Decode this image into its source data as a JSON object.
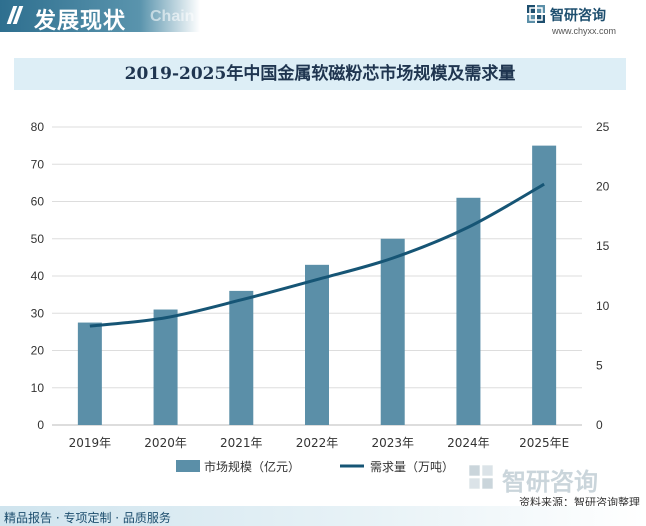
{
  "header": {
    "section_title": "发展现状",
    "section_subtitle": "Chain",
    "brand_name": "智研咨询",
    "brand_url": "www.chyxx.com"
  },
  "colors": {
    "bar": "#5b8fa8",
    "line": "#165575",
    "grid": "#dddddd"
  },
  "chart_data": {
    "type": "bar",
    "title": "2019-2025年中国金属软磁粉芯市场规模及需求量",
    "categories": [
      "2019年",
      "2020年",
      "2021年",
      "2022年",
      "2023年",
      "2024年",
      "2025年E"
    ],
    "series": [
      {
        "name": "市场规模（亿元）",
        "type": "bar",
        "axis": "left",
        "values": [
          27.5,
          31,
          36,
          43,
          50,
          61,
          75
        ]
      },
      {
        "name": "需求量（万吨）",
        "type": "line",
        "axis": "right",
        "values": [
          8.3,
          9.0,
          10.5,
          12.2,
          14.0,
          16.6,
          20.2
        ]
      }
    ],
    "y_left": {
      "min": 0,
      "max": 80,
      "ticks": [
        0,
        10,
        20,
        30,
        40,
        50,
        60,
        70,
        80
      ]
    },
    "y_right": {
      "min": 0,
      "max": 25,
      "ticks": [
        0,
        5,
        10,
        15,
        20,
        25
      ]
    },
    "grid": true,
    "legend_position": "bottom"
  },
  "footer": {
    "tagline": "精品报告 · 专项定制 · 品质服务",
    "source": "资料来源：智研咨询整理"
  }
}
